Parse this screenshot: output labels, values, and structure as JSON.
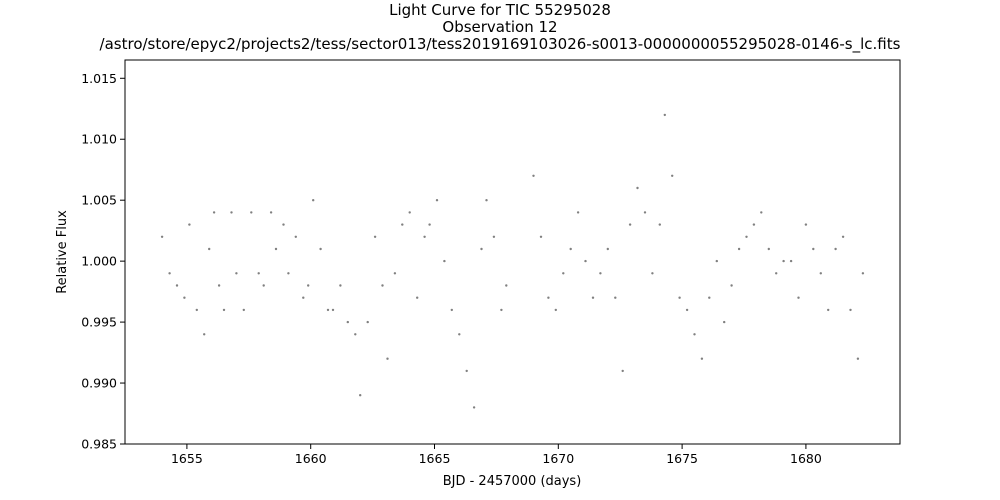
{
  "chart_data": {
    "type": "scatter",
    "title": "Light Curve for TIC 55295028",
    "subtitle": "Observation 12",
    "filename": "/astro/store/epyc2/projects2/tess/sector013/tess2019169103026-s0013-0000000055295028-0146-s_lc.fits",
    "xlabel": "BJD - 2457000 (days)",
    "ylabel": "Relative Flux",
    "xlim": [
      1652.5,
      1683.8
    ],
    "ylim": [
      0.985,
      1.0165
    ],
    "xticks": [
      1655,
      1660,
      1665,
      1670,
      1675,
      1680
    ],
    "xtick_labels": [
      "1655",
      "1660",
      "1665",
      "1670",
      "1675",
      "1680"
    ],
    "yticks": [
      0.985,
      0.99,
      0.995,
      1.0,
      1.005,
      1.01,
      1.015
    ],
    "ytick_labels": [
      "0.985",
      "0.990",
      "0.995",
      "1.000",
      "1.005",
      "1.010",
      "1.015"
    ],
    "marker_color": "#808080",
    "grid": false,
    "series": [
      {
        "x": [
          1654.0,
          1654.3,
          1654.6,
          1654.9,
          1655.1,
          1655.4,
          1655.7,
          1655.9,
          1656.1,
          1656.3,
          1656.5,
          1656.8,
          1657.0,
          1657.3,
          1657.6,
          1657.9,
          1658.1,
          1658.4,
          1658.6,
          1658.9,
          1659.1,
          1659.4,
          1659.7,
          1659.9,
          1660.1,
          1660.4,
          1660.7,
          1660.9,
          1661.2,
          1661.5,
          1661.8,
          1662.0,
          1662.3,
          1662.6,
          1662.9,
          1663.1,
          1663.4,
          1663.7,
          1664.0,
          1664.3,
          1664.6,
          1664.8,
          1665.1,
          1665.4,
          1665.7,
          1666.0,
          1666.3,
          1666.6,
          1666.9,
          1667.1,
          1667.4,
          1667.7,
          1667.9,
          1669.0,
          1669.3,
          1669.6,
          1669.9,
          1670.2,
          1670.5,
          1670.8,
          1671.1,
          1671.4,
          1671.7,
          1672.0,
          1672.3,
          1672.6,
          1672.9,
          1673.2,
          1673.5,
          1673.8,
          1674.1,
          1674.3,
          1674.6,
          1674.9,
          1675.2,
          1675.5,
          1675.8,
          1676.1,
          1676.4,
          1676.7,
          1677.0,
          1677.3,
          1677.6,
          1677.9,
          1678.2,
          1678.5,
          1678.8,
          1679.1,
          1679.4,
          1679.7,
          1680.0,
          1680.3,
          1680.6,
          1680.9,
          1681.2,
          1681.5,
          1681.8,
          1682.1,
          1682.3
        ],
        "y": [
          1.002,
          0.999,
          0.998,
          0.997,
          1.003,
          0.996,
          0.994,
          1.001,
          1.004,
          0.998,
          0.996,
          1.004,
          0.999,
          0.996,
          1.004,
          0.999,
          0.998,
          1.004,
          1.001,
          1.003,
          0.999,
          1.002,
          0.997,
          0.998,
          1.005,
          1.001,
          0.996,
          0.996,
          0.998,
          0.995,
          0.994,
          0.989,
          0.995,
          1.002,
          0.998,
          0.992,
          0.999,
          1.003,
          1.004,
          0.997,
          1.002,
          1.003,
          1.005,
          1.0,
          0.996,
          0.994,
          0.991,
          0.988,
          1.001,
          1.005,
          1.002,
          0.996,
          0.998,
          1.007,
          1.002,
          0.997,
          0.996,
          0.999,
          1.001,
          1.004,
          1.0,
          0.997,
          0.999,
          1.001,
          0.997,
          0.991,
          1.003,
          1.006,
          1.004,
          0.999,
          1.003,
          1.012,
          1.007,
          0.997,
          0.996,
          0.994,
          0.992,
          0.997,
          1.0,
          0.995,
          0.998,
          1.001,
          1.002,
          1.003,
          1.004,
          1.001,
          0.999,
          1.0,
          1.0,
          0.997,
          1.003,
          1.001,
          0.999,
          0.996,
          1.001,
          1.002,
          0.996,
          0.992,
          0.999
        ]
      }
    ]
  }
}
